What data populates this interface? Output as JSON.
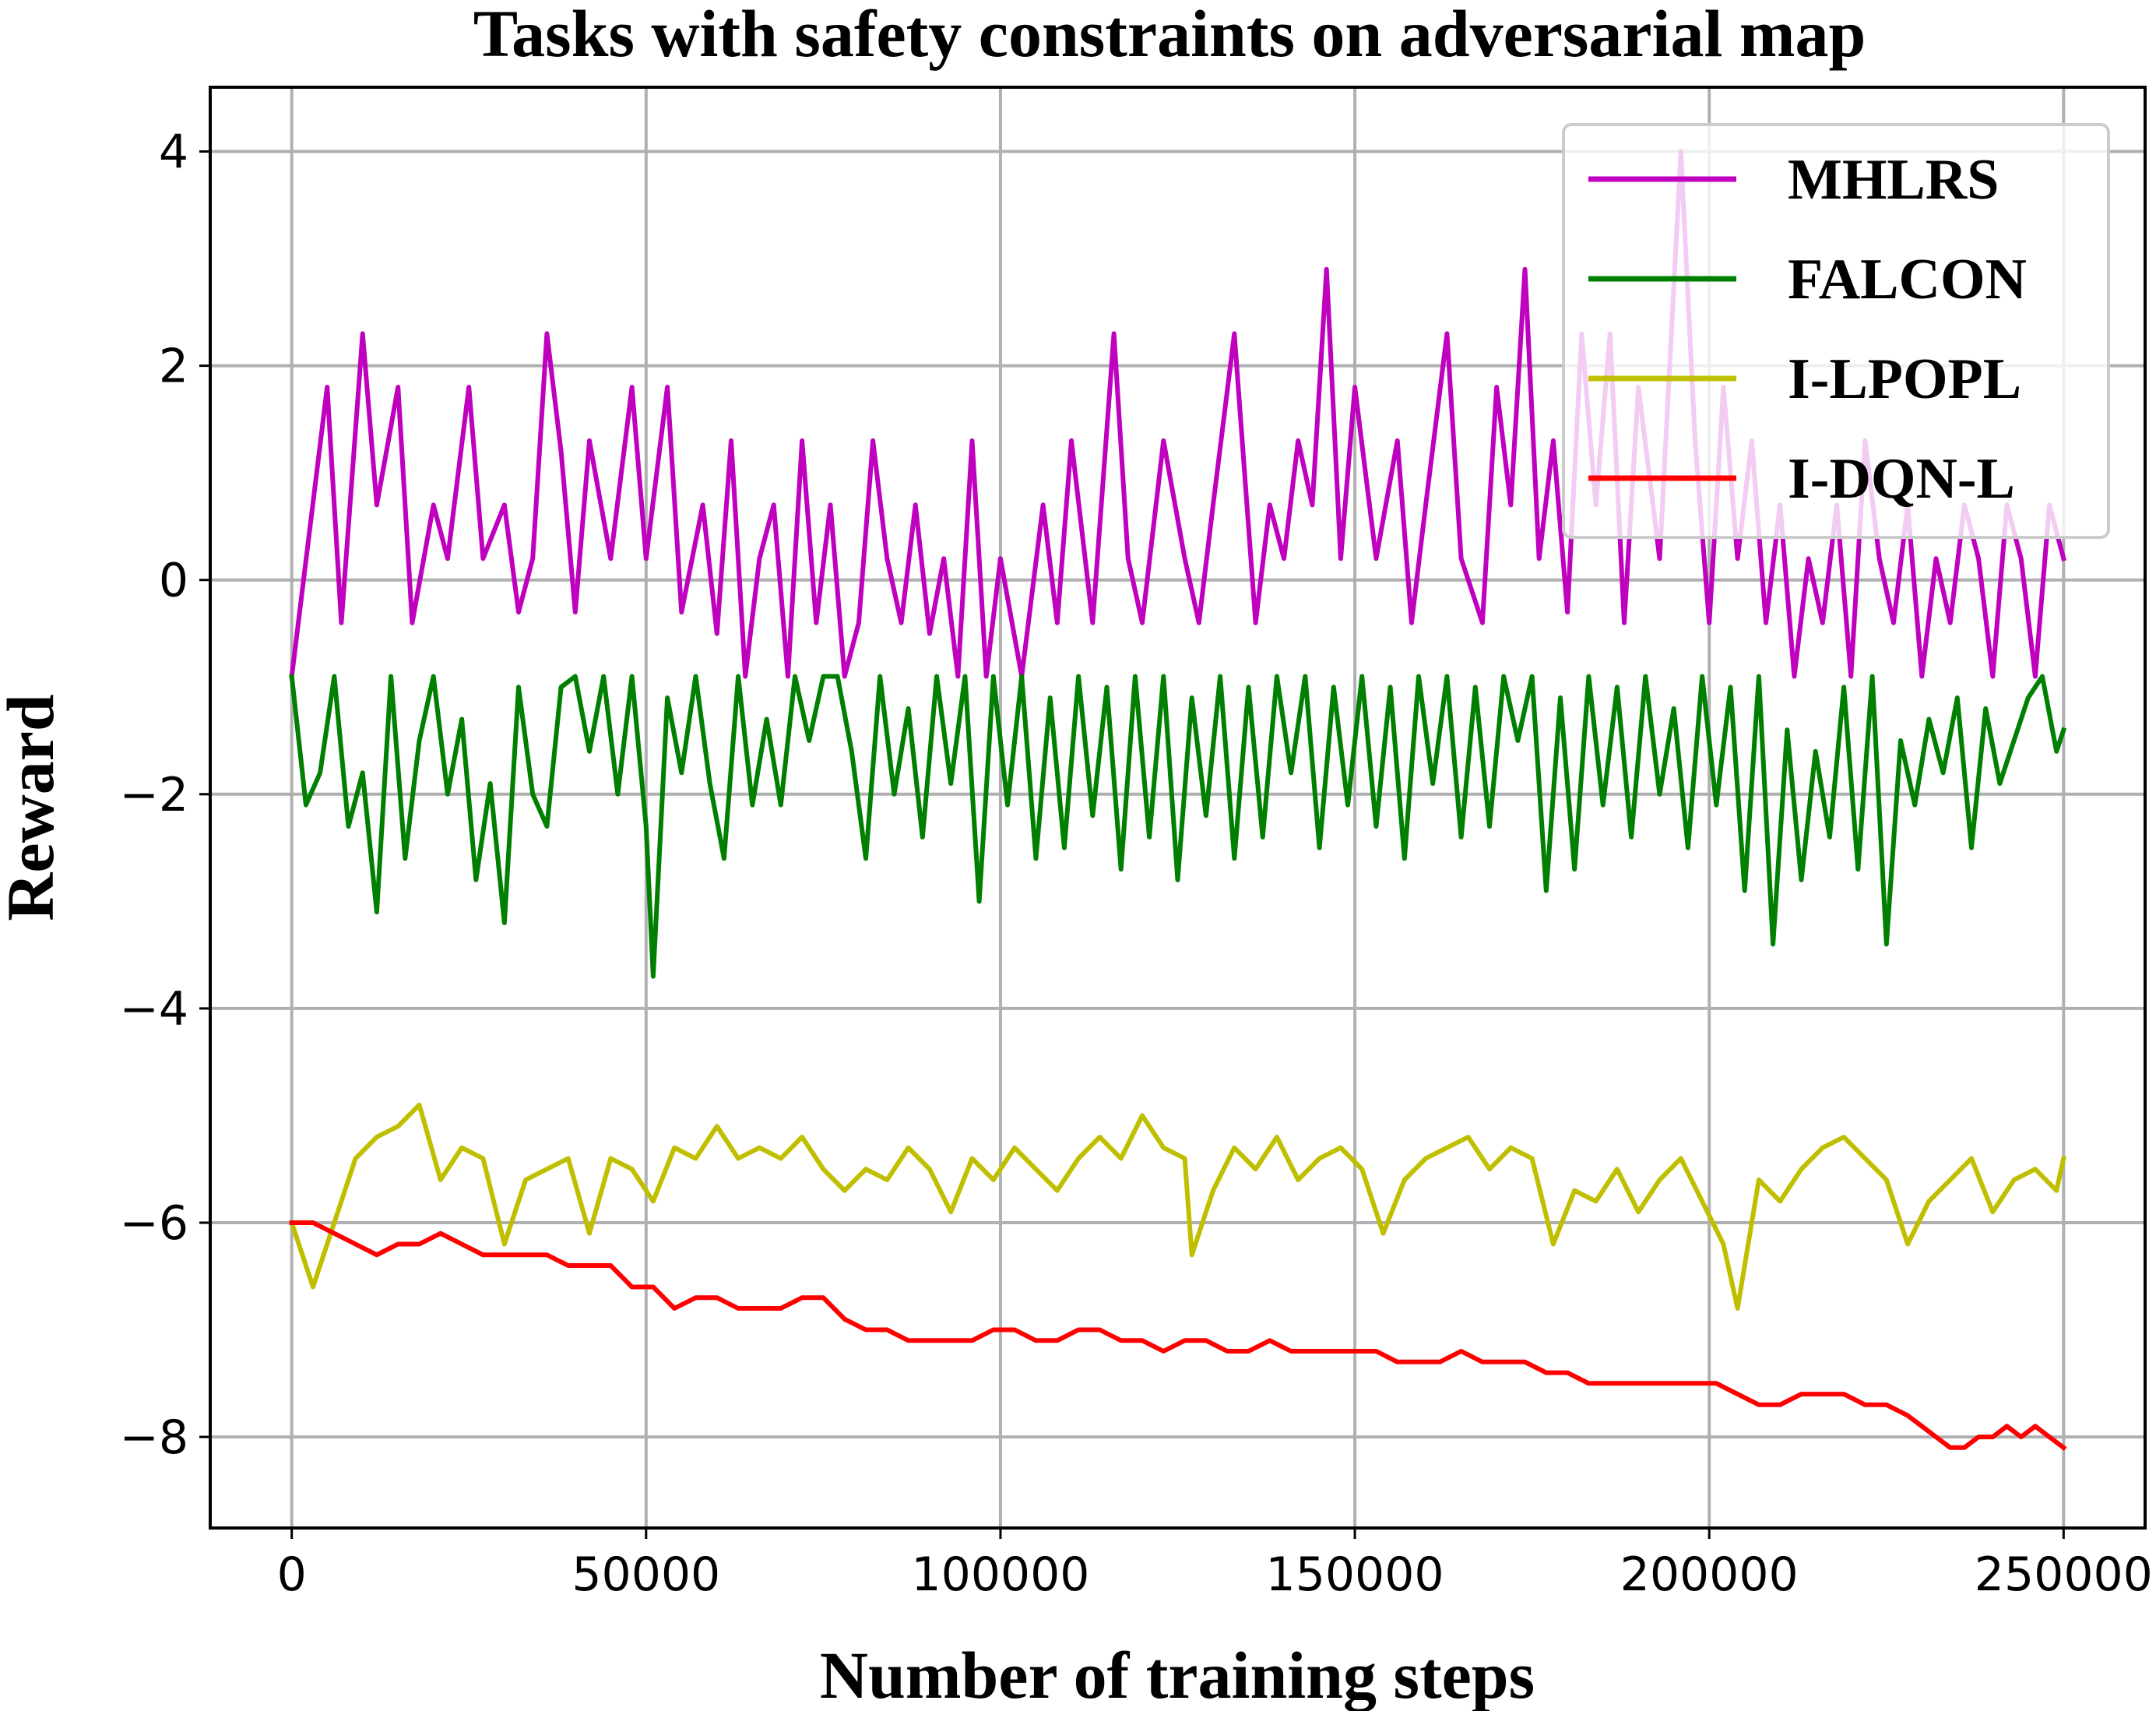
{
  "chart_data": {
    "type": "line",
    "title": "Tasks with safety constraints on adversarial map",
    "xlabel": "Number of training steps",
    "ylabel": "Reward",
    "xlim": [
      -11500,
      261500
    ],
    "ylim": [
      -8.85,
      4.6
    ],
    "xticks": [
      0,
      50000,
      100000,
      150000,
      200000,
      250000
    ],
    "xtick_labels": [
      "0",
      "50000",
      "100000",
      "150000",
      "200000",
      "250000"
    ],
    "yticks": [
      -8,
      -6,
      -4,
      -2,
      0,
      2,
      4
    ],
    "ytick_labels": [
      "−8",
      "−6",
      "−4",
      "−2",
      "0",
      "2",
      "4"
    ],
    "grid": true,
    "legend_position": "top-right",
    "series": [
      {
        "name": "MHLRS",
        "color": "#bf00bf",
        "x": [
          0,
          5000,
          7000,
          10000,
          12000,
          15000,
          17000,
          20000,
          22000,
          25000,
          27000,
          30000,
          32000,
          34000,
          36000,
          38000,
          40000,
          42000,
          45000,
          48000,
          50000,
          53000,
          55000,
          58000,
          60000,
          62000,
          64000,
          66000,
          68000,
          70000,
          72000,
          74000,
          76000,
          78000,
          80000,
          82000,
          84000,
          86000,
          88000,
          90000,
          92000,
          94000,
          96000,
          98000,
          100000,
          103000,
          106000,
          108000,
          110000,
          113000,
          116000,
          118000,
          120000,
          123000,
          126000,
          128000,
          130000,
          133000,
          136000,
          138000,
          140000,
          142000,
          144000,
          146000,
          148000,
          150000,
          153000,
          156000,
          158000,
          160000,
          163000,
          165000,
          168000,
          170000,
          172000,
          174000,
          176000,
          178000,
          180000,
          182000,
          184000,
          186000,
          188000,
          190000,
          193000,
          196000,
          198000,
          200000,
          202000,
          204000,
          206000,
          208000,
          210000,
          212000,
          214000,
          216000,
          218000,
          220000,
          222000,
          224000,
          226000,
          228000,
          230000,
          232000,
          234000,
          236000,
          238000,
          240000,
          242000,
          244000,
          246000,
          248000,
          250000
        ],
        "values": [
          -0.9,
          1.8,
          -0.4,
          2.3,
          0.7,
          1.8,
          -0.4,
          0.7,
          0.2,
          1.8,
          0.2,
          0.7,
          -0.3,
          0.2,
          2.3,
          1.2,
          -0.3,
          1.3,
          0.2,
          1.8,
          0.2,
          1.8,
          -0.3,
          0.7,
          -0.5,
          1.3,
          -0.9,
          0.2,
          0.7,
          -0.9,
          1.3,
          -0.4,
          0.7,
          -0.9,
          -0.4,
          1.3,
          0.2,
          -0.4,
          0.7,
          -0.5,
          0.2,
          -0.9,
          1.3,
          -0.9,
          0.2,
          -0.9,
          0.7,
          -0.4,
          1.3,
          -0.4,
          2.3,
          0.2,
          -0.4,
          1.3,
          0.2,
          -0.4,
          0.7,
          2.3,
          -0.4,
          0.7,
          0.2,
          1.3,
          0.7,
          2.9,
          0.2,
          1.8,
          0.2,
          1.3,
          -0.4,
          0.7,
          2.3,
          0.2,
          -0.4,
          1.8,
          0.7,
          2.9,
          0.2,
          1.3,
          -0.3,
          2.3,
          0.7,
          2.3,
          -0.4,
          1.8,
          0.2,
          4.0,
          1.3,
          -0.4,
          1.8,
          0.2,
          1.3,
          -0.4,
          0.7,
          -0.9,
          0.2,
          -0.4,
          0.7,
          -0.9,
          1.3,
          0.2,
          -0.4,
          0.7,
          -0.9,
          0.2,
          -0.4,
          0.7,
          0.2,
          -0.9,
          0.7,
          0.2,
          -0.9,
          0.7,
          0.2
        ]
      },
      {
        "name": "FALCON",
        "color": "#007f00",
        "x": [
          0,
          2000,
          4000,
          6000,
          8000,
          10000,
          12000,
          14000,
          16000,
          18000,
          20000,
          22000,
          24000,
          26000,
          28000,
          30000,
          32000,
          34000,
          36000,
          38000,
          40000,
          42000,
          44000,
          46000,
          48000,
          50000,
          51000,
          53000,
          55000,
          57000,
          59000,
          61000,
          63000,
          65000,
          67000,
          69000,
          71000,
          73000,
          75000,
          77000,
          79000,
          81000,
          83000,
          85000,
          87000,
          89000,
          91000,
          93000,
          95000,
          97000,
          99000,
          101000,
          103000,
          105000,
          107000,
          109000,
          111000,
          113000,
          115000,
          117000,
          119000,
          121000,
          123000,
          125000,
          127000,
          129000,
          131000,
          133000,
          135000,
          137000,
          139000,
          141000,
          143000,
          145000,
          147000,
          149000,
          151000,
          153000,
          155000,
          157000,
          159000,
          161000,
          163000,
          165000,
          167000,
          169000,
          171000,
          173000,
          175000,
          177000,
          179000,
          181000,
          183000,
          185000,
          187000,
          189000,
          191000,
          193000,
          195000,
          197000,
          199000,
          201000,
          203000,
          205000,
          207000,
          209000,
          211000,
          213000,
          215000,
          217000,
          219000,
          221000,
          223000,
          225000,
          227000,
          229000,
          231000,
          233000,
          235000,
          237000,
          239000,
          241000,
          243000,
          245000,
          247000,
          249000,
          250000
        ],
        "values": [
          -0.9,
          -2.1,
          -1.8,
          -0.9,
          -2.3,
          -1.8,
          -3.1,
          -0.9,
          -2.6,
          -1.5,
          -0.9,
          -2.0,
          -1.3,
          -2.8,
          -1.9,
          -3.2,
          -1.0,
          -2.0,
          -2.3,
          -1.0,
          -0.9,
          -1.6,
          -0.9,
          -2.0,
          -0.9,
          -2.3,
          -3.7,
          -1.1,
          -1.8,
          -0.9,
          -1.9,
          -2.6,
          -0.9,
          -2.1,
          -1.3,
          -2.1,
          -0.9,
          -1.5,
          -0.9,
          -0.9,
          -1.6,
          -2.6,
          -0.9,
          -2.0,
          -1.2,
          -2.4,
          -0.9,
          -1.9,
          -0.9,
          -3.0,
          -0.9,
          -2.1,
          -0.9,
          -2.6,
          -1.1,
          -2.5,
          -0.9,
          -2.2,
          -1.0,
          -2.7,
          -0.9,
          -2.4,
          -0.9,
          -2.8,
          -1.1,
          -2.2,
          -0.9,
          -2.6,
          -1.0,
          -2.4,
          -0.9,
          -1.8,
          -0.9,
          -2.5,
          -1.0,
          -2.1,
          -0.9,
          -2.3,
          -1.0,
          -2.6,
          -0.9,
          -1.9,
          -0.9,
          -2.4,
          -1.0,
          -2.3,
          -0.9,
          -1.5,
          -0.9,
          -2.9,
          -1.1,
          -2.7,
          -0.9,
          -2.1,
          -1.0,
          -2.4,
          -0.9,
          -2.0,
          -1.2,
          -2.5,
          -0.9,
          -2.1,
          -1.0,
          -2.9,
          -0.9,
          -3.4,
          -1.4,
          -2.8,
          -1.6,
          -2.4,
          -1.0,
          -2.7,
          -0.9,
          -3.4,
          -1.5,
          -2.1,
          -1.3,
          -1.8,
          -1.1,
          -2.5,
          -1.2,
          -1.9,
          -1.5,
          -1.1,
          -0.9,
          -1.6,
          -1.4
        ]
      },
      {
        "name": "I-LPOPL",
        "color": "#bfbf00",
        "x": [
          0,
          3000,
          6000,
          9000,
          12000,
          15000,
          18000,
          21000,
          24000,
          27000,
          30000,
          33000,
          36000,
          39000,
          42000,
          45000,
          48000,
          51000,
          54000,
          57000,
          60000,
          63000,
          66000,
          69000,
          72000,
          75000,
          78000,
          81000,
          84000,
          87000,
          90000,
          93000,
          96000,
          99000,
          102000,
          105000,
          108000,
          111000,
          114000,
          117000,
          120000,
          123000,
          126000,
          127000,
          130000,
          133000,
          136000,
          139000,
          142000,
          145000,
          148000,
          151000,
          154000,
          157000,
          160000,
          163000,
          166000,
          169000,
          172000,
          175000,
          178000,
          181000,
          184000,
          187000,
          190000,
          193000,
          196000,
          199000,
          202000,
          204000,
          207000,
          210000,
          213000,
          216000,
          219000,
          222000,
          225000,
          228000,
          231000,
          234000,
          237000,
          240000,
          243000,
          246000,
          249000,
          250000
        ],
        "values": [
          -6.0,
          -6.6,
          -6.0,
          -5.4,
          -5.2,
          -5.1,
          -4.9,
          -5.6,
          -5.3,
          -5.4,
          -6.2,
          -5.6,
          -5.5,
          -5.4,
          -6.1,
          -5.4,
          -5.5,
          -5.8,
          -5.3,
          -5.4,
          -5.1,
          -5.4,
          -5.3,
          -5.4,
          -5.2,
          -5.5,
          -5.7,
          -5.5,
          -5.6,
          -5.3,
          -5.5,
          -5.9,
          -5.4,
          -5.6,
          -5.3,
          -5.5,
          -5.7,
          -5.4,
          -5.2,
          -5.4,
          -5.0,
          -5.3,
          -5.4,
          -6.3,
          -5.7,
          -5.3,
          -5.5,
          -5.2,
          -5.6,
          -5.4,
          -5.3,
          -5.5,
          -6.1,
          -5.6,
          -5.4,
          -5.3,
          -5.2,
          -5.5,
          -5.3,
          -5.4,
          -6.2,
          -5.7,
          -5.8,
          -5.5,
          -5.9,
          -5.6,
          -5.4,
          -5.8,
          -6.2,
          -6.8,
          -5.6,
          -5.8,
          -5.5,
          -5.3,
          -5.2,
          -5.4,
          -5.6,
          -6.2,
          -5.8,
          -5.6,
          -5.4,
          -5.9,
          -5.6,
          -5.5,
          -5.7,
          -5.4
        ]
      },
      {
        "name": "I-DQN-L",
        "color": "#ff0000",
        "x": [
          0,
          3000,
          6000,
          9000,
          12000,
          15000,
          18000,
          21000,
          24000,
          27000,
          30000,
          33000,
          36000,
          39000,
          42000,
          45000,
          48000,
          51000,
          54000,
          57000,
          60000,
          63000,
          66000,
          69000,
          72000,
          75000,
          78000,
          81000,
          84000,
          87000,
          90000,
          93000,
          96000,
          99000,
          102000,
          105000,
          108000,
          111000,
          114000,
          117000,
          120000,
          123000,
          126000,
          129000,
          132000,
          135000,
          138000,
          141000,
          144000,
          147000,
          150000,
          153000,
          156000,
          159000,
          162000,
          165000,
          168000,
          171000,
          174000,
          177000,
          180000,
          183000,
          186000,
          189000,
          192000,
          195000,
          198000,
          201000,
          204000,
          207000,
          210000,
          213000,
          216000,
          219000,
          222000,
          225000,
          228000,
          230000,
          232000,
          234000,
          236000,
          238000,
          240000,
          242000,
          244000,
          246000,
          248000,
          250000
        ],
        "values": [
          -6.0,
          -6.0,
          -6.1,
          -6.2,
          -6.3,
          -6.2,
          -6.2,
          -6.1,
          -6.2,
          -6.3,
          -6.3,
          -6.3,
          -6.3,
          -6.4,
          -6.4,
          -6.4,
          -6.6,
          -6.6,
          -6.8,
          -6.7,
          -6.7,
          -6.8,
          -6.8,
          -6.8,
          -6.7,
          -6.7,
          -6.9,
          -7.0,
          -7.0,
          -7.1,
          -7.1,
          -7.1,
          -7.1,
          -7.0,
          -7.0,
          -7.1,
          -7.1,
          -7.0,
          -7.0,
          -7.1,
          -7.1,
          -7.2,
          -7.1,
          -7.1,
          -7.2,
          -7.2,
          -7.1,
          -7.2,
          -7.2,
          -7.2,
          -7.2,
          -7.2,
          -7.3,
          -7.3,
          -7.3,
          -7.2,
          -7.3,
          -7.3,
          -7.3,
          -7.4,
          -7.4,
          -7.5,
          -7.5,
          -7.5,
          -7.5,
          -7.5,
          -7.5,
          -7.5,
          -7.6,
          -7.7,
          -7.7,
          -7.6,
          -7.6,
          -7.6,
          -7.7,
          -7.7,
          -7.8,
          -7.9,
          -8.0,
          -8.1,
          -8.1,
          -8.0,
          -8.0,
          -7.9,
          -8.0,
          -7.9,
          -8.0,
          -8.1
        ]
      }
    ]
  }
}
